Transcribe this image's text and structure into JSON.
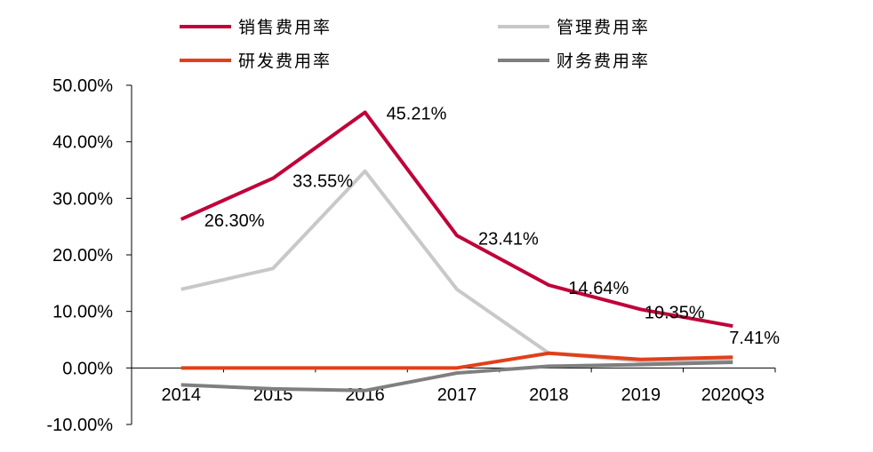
{
  "chart_data": {
    "type": "line",
    "title": "",
    "xlabel": "",
    "ylabel": "",
    "categories": [
      "2014",
      "2015",
      "2016",
      "2017",
      "2018",
      "2019",
      "2020Q3"
    ],
    "ylim": [
      -10,
      50
    ],
    "yticks": [
      50,
      40,
      30,
      20,
      10,
      0,
      -10
    ],
    "ytick_labels": [
      "50.00%",
      "40.00%",
      "30.00%",
      "20.00%",
      "10.00%",
      "0.00%",
      "-10.00%"
    ],
    "grid": false,
    "legend_position": "top",
    "series": [
      {
        "name": "销售费用率",
        "color": "#C00039",
        "values": [
          26.3,
          33.55,
          45.21,
          23.41,
          14.64,
          10.35,
          7.41
        ],
        "labels": [
          "26.30%",
          "33.55%",
          "45.21%",
          "23.41%",
          "14.64%",
          "10.35%",
          "7.41%"
        ]
      },
      {
        "name": "管理费用率",
        "color": "#C8C8C8",
        "values": [
          13.9,
          17.6,
          34.8,
          13.9,
          2.6,
          1.2,
          1.4
        ]
      },
      {
        "name": "研发费用率",
        "color": "#E0401A",
        "values": [
          0,
          0,
          0,
          0,
          2.6,
          1.5,
          1.9
        ]
      },
      {
        "name": "财务费用率",
        "color": "#7F7F7F",
        "values": [
          -3.0,
          -3.7,
          -4.0,
          -0.9,
          0.3,
          0.6,
          1.0
        ]
      }
    ]
  }
}
